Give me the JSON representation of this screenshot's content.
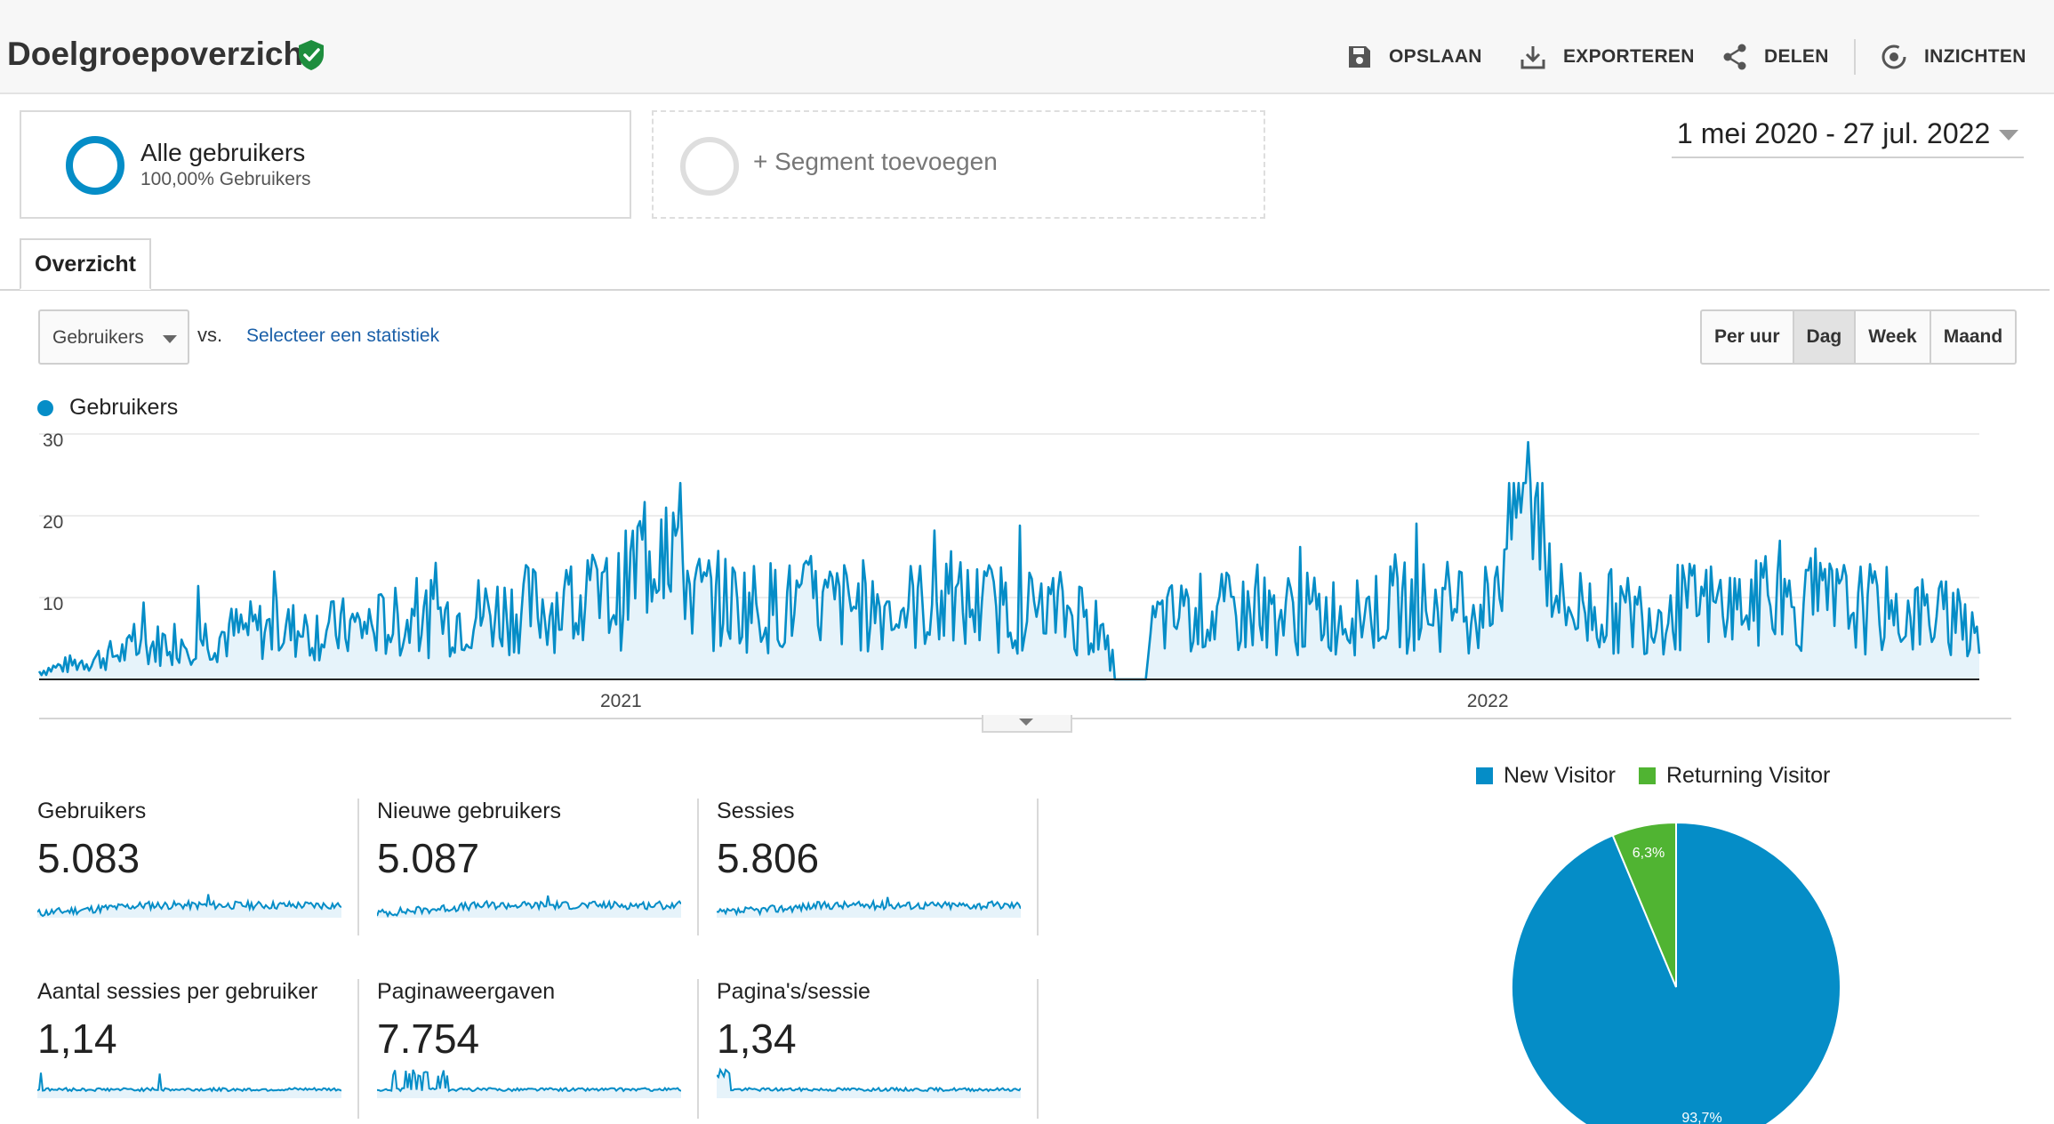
{
  "header": {
    "title": "Doelgroepoverzicht",
    "actions": [
      {
        "label": "OPSLAAN",
        "icon": "save-icon"
      },
      {
        "label": "EXPORTEREN",
        "icon": "export-icon"
      },
      {
        "label": "DELEN",
        "icon": "share-icon"
      },
      {
        "label": "INZICHTEN",
        "icon": "insights-icon"
      }
    ]
  },
  "segments": {
    "active": {
      "name": "Alle gebruikers",
      "sub": "100,00% Gebruikers"
    },
    "add_label": "+ Segment toevoegen"
  },
  "date_range": "1 mei 2020 - 27 jul. 2022",
  "tabs": [
    {
      "label": "Overzicht",
      "active": true
    }
  ],
  "metric_controls": {
    "selected": "Gebruikers",
    "vs": "vs.",
    "select_link": "Selecteer een statistiek",
    "granularity": [
      "Per uur",
      "Dag",
      "Week",
      "Maand"
    ],
    "granularity_active": "Dag"
  },
  "colors": {
    "new_visitor": "#058dc7",
    "returning_visitor": "#50b432",
    "line": "#058dc7",
    "area_fill": "#e6f3fa"
  },
  "chart_data": [
    {
      "type": "area",
      "series": [
        {
          "name": "Gebruikers"
        }
      ],
      "x_range": [
        "2020-05-01",
        "2022-07-27"
      ],
      "x_tick_labels": [
        "2021",
        "2022"
      ],
      "y_tick_labels": [
        "10",
        "20",
        "30"
      ],
      "ylim": [
        0,
        30
      ],
      "grid": true,
      "points": [
        [
          "2020-05-01",
          1
        ],
        [
          "2020-06-01",
          3
        ],
        [
          "2020-07-01",
          5
        ],
        [
          "2020-08-01",
          6
        ],
        [
          "2020-09-01",
          6
        ],
        [
          "2020-10-01",
          7
        ],
        [
          "2020-11-01",
          8
        ],
        [
          "2020-12-01",
          9
        ],
        [
          "2021-01-01",
          10
        ],
        [
          "2021-01-20",
          21
        ],
        [
          "2021-02-01",
          10
        ],
        [
          "2021-03-01",
          9
        ],
        [
          "2021-04-01",
          9
        ],
        [
          "2021-05-01",
          9
        ],
        [
          "2021-06-01",
          9
        ],
        [
          "2021-07-15",
          8
        ],
        [
          "2021-08-01",
          0
        ],
        [
          "2021-08-15",
          7
        ],
        [
          "2021-09-01",
          8
        ],
        [
          "2021-10-01",
          8
        ],
        [
          "2021-11-01",
          8
        ],
        [
          "2021-12-01",
          9
        ],
        [
          "2022-01-01",
          9
        ],
        [
          "2022-01-18",
          29
        ],
        [
          "2022-02-01",
          9
        ],
        [
          "2022-03-01",
          8
        ],
        [
          "2022-04-01",
          9
        ],
        [
          "2022-05-01",
          9
        ],
        [
          "2022-06-01",
          9
        ],
        [
          "2022-07-27",
          7
        ]
      ]
    },
    {
      "type": "pie",
      "series": [
        {
          "name": "New Visitor",
          "value": 93.7
        },
        {
          "name": "Returning Visitor",
          "value": 6.3
        }
      ],
      "data_labels": [
        "93,7%",
        "6,3%"
      ]
    }
  ],
  "legend": {
    "series_name": "Gebruikers"
  },
  "pie_legend": [
    "New Visitor",
    "Returning Visitor"
  ],
  "kpis": [
    {
      "label": "Gebruikers",
      "value": "5.083"
    },
    {
      "label": "Nieuwe gebruikers",
      "value": "5.087"
    },
    {
      "label": "Sessies",
      "value": "5.806"
    },
    {
      "label": "Aantal sessies per gebruiker",
      "value": "1,14"
    },
    {
      "label": "Paginaweergaven",
      "value": "7.754"
    },
    {
      "label": "Pagina's/sessie",
      "value": "1,34"
    }
  ]
}
